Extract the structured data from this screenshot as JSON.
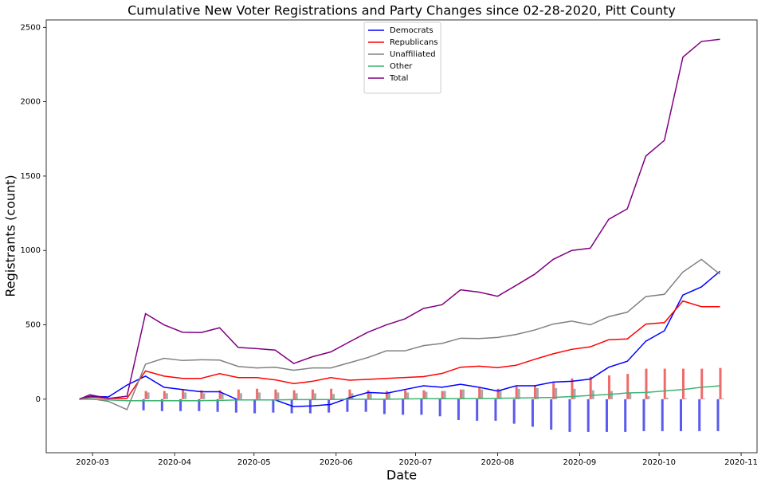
{
  "chart_data": {
    "type": "line",
    "title": "Cumulative New Voter Registrations and Party Changes since 02-28-2020, Pitt County",
    "xlabel": "Date",
    "ylabel": "Registrants (count)",
    "xlim": [
      43.5,
      312
    ],
    "ylim": [
      -360,
      2550
    ],
    "xticks": [
      {
        "value": 61,
        "label": "2020-03"
      },
      {
        "value": 92,
        "label": "2020-04"
      },
      {
        "value": 122,
        "label": "2020-05"
      },
      {
        "value": 153,
        "label": "2020-06"
      },
      {
        "value": 183,
        "label": "2020-07"
      },
      {
        "value": 214,
        "label": "2020-08"
      },
      {
        "value": 245,
        "label": "2020-09"
      },
      {
        "value": 275,
        "label": "2020-10"
      },
      {
        "value": 306,
        "label": "2020-11"
      }
    ],
    "yticks": [
      0,
      500,
      1000,
      1500,
      2000,
      2500
    ],
    "legend": "upper center",
    "x": [
      56,
      60,
      67,
      74,
      81,
      88,
      95,
      102,
      109,
      116,
      123,
      130,
      137,
      144,
      151,
      158,
      165,
      172,
      179,
      186,
      193,
      200,
      207,
      214,
      221,
      228,
      235,
      242,
      249,
      256,
      263,
      270,
      277,
      284,
      291,
      298
    ],
    "series": [
      {
        "name": "Democrats",
        "color": "#0000ff",
        "values": [
          0,
          20,
          15,
          95,
          155,
          80,
          65,
          50,
          50,
          -5,
          -5,
          -5,
          -50,
          -45,
          -35,
          10,
          45,
          40,
          65,
          90,
          80,
          100,
          80,
          55,
          90,
          90,
          115,
          120,
          135,
          215,
          255,
          390,
          460,
          700,
          755,
          860
        ]
      },
      {
        "name": "Republicans",
        "color": "#ff0000",
        "values": [
          0,
          15,
          5,
          5,
          190,
          155,
          140,
          140,
          172,
          145,
          145,
          130,
          105,
          120,
          145,
          128,
          133,
          140,
          146,
          152,
          173,
          215,
          222,
          212,
          228,
          268,
          305,
          335,
          352,
          400,
          405,
          505,
          515,
          660,
          622,
          622
        ]
      },
      {
        "name": "Unaffiliated",
        "color": "#808080",
        "values": [
          0,
          5,
          -15,
          -70,
          235,
          275,
          260,
          265,
          263,
          220,
          210,
          215,
          195,
          210,
          210,
          245,
          280,
          325,
          325,
          360,
          375,
          410,
          408,
          415,
          435,
          465,
          505,
          525,
          500,
          555,
          585,
          690,
          705,
          855,
          940,
          840
        ]
      },
      {
        "name": "Other",
        "color": "#3cb371",
        "values": [
          0,
          0,
          -5,
          -10,
          -10,
          -10,
          -10,
          -10,
          -8,
          -5,
          -5,
          -5,
          -3,
          -3,
          -2,
          0,
          0,
          0,
          2,
          3,
          3,
          4,
          5,
          6,
          8,
          10,
          12,
          18,
          25,
          32,
          42,
          45,
          55,
          65,
          80,
          90
        ]
      },
      {
        "name": "Total",
        "color": "#800080",
        "values": [
          0,
          30,
          5,
          20,
          575,
          500,
          450,
          448,
          480,
          348,
          340,
          330,
          240,
          285,
          318,
          385,
          450,
          500,
          540,
          610,
          635,
          735,
          720,
          692,
          765,
          840,
          940,
          1000,
          1015,
          1210,
          1280,
          1635,
          1740,
          2300,
          2405,
          2420
        ]
      }
    ],
    "bars": {
      "x": [
        81,
        88,
        95,
        102,
        109,
        116,
        123,
        130,
        137,
        144,
        151,
        158,
        165,
        172,
        179,
        186,
        193,
        200,
        207,
        214,
        221,
        228,
        235,
        242,
        249,
        256,
        263,
        270,
        277,
        284,
        291,
        298
      ],
      "series": [
        {
          "color": "#5a5aee",
          "values": [
            -75,
            -80,
            -80,
            -80,
            -85,
            -90,
            -95,
            -90,
            -95,
            -95,
            -90,
            -85,
            -85,
            -100,
            -105,
            -105,
            -115,
            -140,
            -145,
            -145,
            -165,
            -185,
            -205,
            -220,
            -220,
            -220,
            -220,
            -215,
            -215,
            -215,
            -215,
            -215
          ]
        },
        {
          "color": "#f06a6a",
          "values": [
            55,
            55,
            60,
            60,
            60,
            65,
            70,
            65,
            60,
            65,
            70,
            65,
            60,
            55,
            60,
            60,
            55,
            65,
            75,
            70,
            85,
            95,
            110,
            140,
            150,
            160,
            170,
            205,
            205,
            205,
            205,
            210
          ]
        },
        {
          "color": "#a8a8a8",
          "values": [
            45,
            40,
            45,
            40,
            40,
            40,
            45,
            45,
            40,
            40,
            35,
            40,
            40,
            45,
            45,
            50,
            55,
            65,
            65,
            60,
            70,
            75,
            75,
            70,
            60,
            55,
            45,
            20,
            10,
            5,
            5,
            5
          ]
        }
      ]
    }
  }
}
